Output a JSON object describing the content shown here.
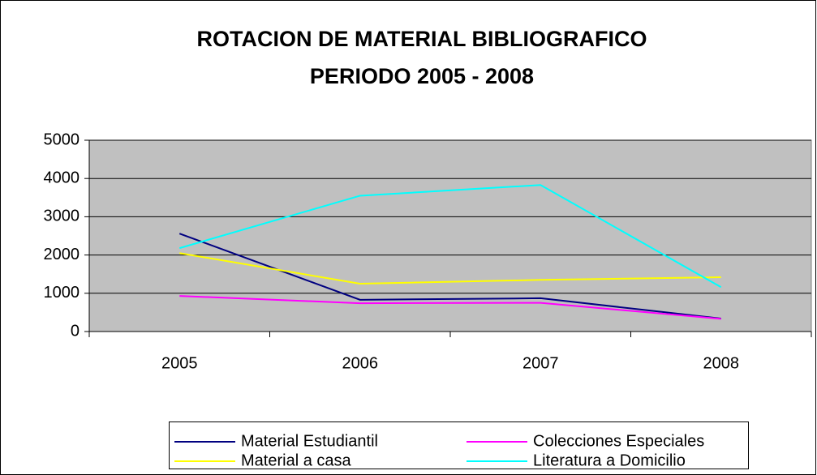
{
  "chart_data": {
    "type": "line",
    "title": [
      "ROTACION DE MATERIAL BIBLIOGRAFICO",
      "PERIODO 2005 - 2008"
    ],
    "categories": [
      "2005",
      "2006",
      "2007",
      "2008"
    ],
    "series": [
      {
        "name": "Material Estudiantil",
        "color": "#000080",
        "values": [
          2560,
          830,
          870,
          340
        ]
      },
      {
        "name": "Colecciones Especiales",
        "color": "#ff00ff",
        "values": [
          930,
          740,
          750,
          330
        ]
      },
      {
        "name": "Material a casa",
        "color": "#ffff00",
        "values": [
          2050,
          1250,
          1350,
          1420
        ]
      },
      {
        "name": "Literatura a Domicilio",
        "color": "#00ffff",
        "values": [
          2180,
          3550,
          3830,
          1160
        ]
      }
    ],
    "ylim": [
      0,
      5000
    ],
    "yticks": [
      0,
      1000,
      2000,
      3000,
      4000,
      5000
    ],
    "grid": true,
    "legend": "bottom"
  }
}
